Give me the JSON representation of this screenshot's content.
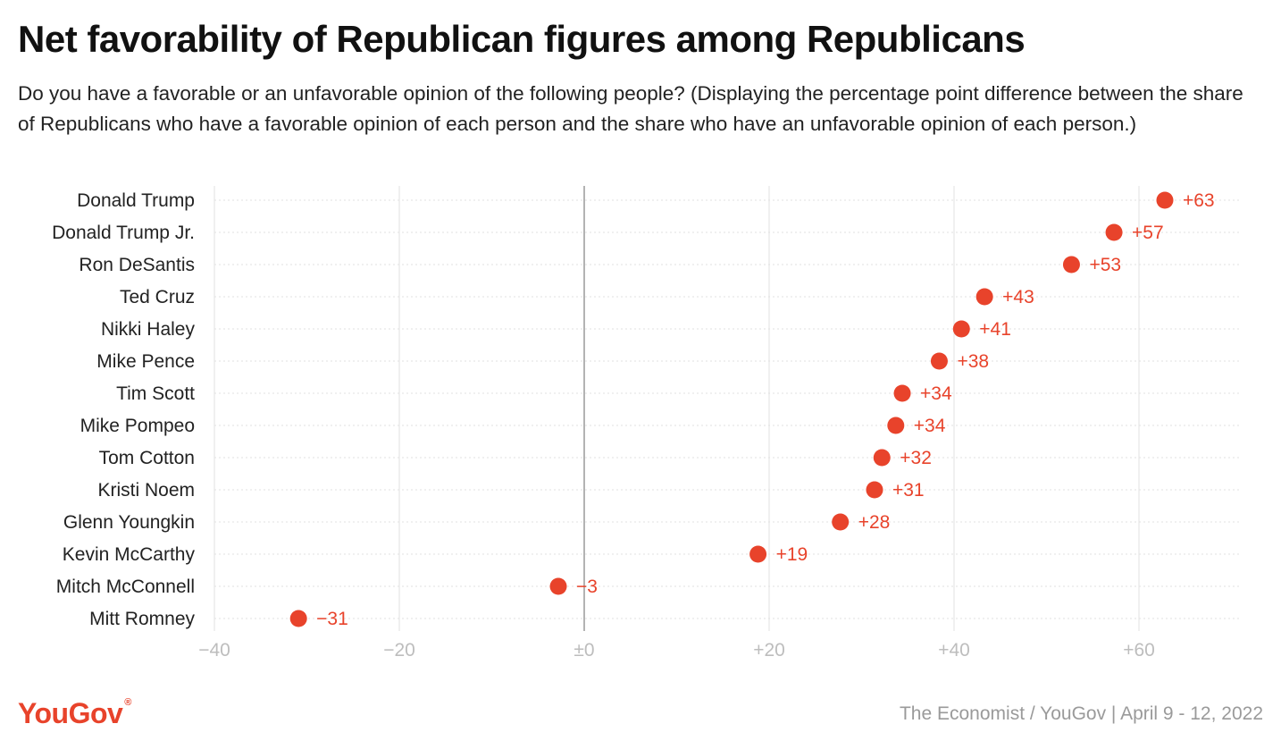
{
  "title": "Net favorability of Republican figures among Republicans",
  "subtitle": "Do you have a favorable or an unfavorable opinion of the following people? (Displaying the percentage point difference between the share of Republicans who have a favorable opinion of each person and the share who have an unfavorable opinion of each person.)",
  "colors": {
    "accent": "#e8432b",
    "grid": "#e2e2e2",
    "zero_line": "#9a9a9a",
    "tick": "#bdbdbd",
    "logo": "#e8432b"
  },
  "footer": {
    "brand": "YouGov",
    "trademark": "®",
    "source": "The Economist / YouGov | April 9 - 12, 2022"
  },
  "chart_data": {
    "type": "scatter",
    "title": "Net favorability of Republican figures among Republicans",
    "xlabel": "",
    "ylabel": "",
    "xlim": [
      -40,
      70
    ],
    "x_ticks": [
      -40,
      -20,
      0,
      20,
      40,
      60
    ],
    "x_tick_labels": [
      "−40",
      "−20",
      "±0",
      "+20",
      "+40",
      "+60"
    ],
    "grid": true,
    "categories": [
      "Donald Trump",
      "Donald Trump Jr.",
      "Ron DeSantis",
      "Ted Cruz",
      "Nikki Haley",
      "Mike Pence",
      "Tim Scott",
      "Mike Pompeo",
      "Tom Cotton",
      "Kristi Noem",
      "Glenn Youngkin",
      "Kevin McCarthy",
      "Mitch McConnell",
      "Mitt Romney"
    ],
    "values": [
      63,
      57,
      53,
      43,
      41,
      38,
      34,
      34,
      32,
      31,
      28,
      19,
      -3,
      -31
    ],
    "plot_positions": [
      62.8,
      57.3,
      52.7,
      43.3,
      40.8,
      38.4,
      34.4,
      33.7,
      32.2,
      31.4,
      27.7,
      18.8,
      -2.8,
      -30.9
    ],
    "labels": [
      "+63",
      "+57",
      "+53",
      "+43",
      "+41",
      "+38",
      "+34",
      "+34",
      "+32",
      "+31",
      "+28",
      "+19",
      "−3",
      "−31"
    ]
  }
}
